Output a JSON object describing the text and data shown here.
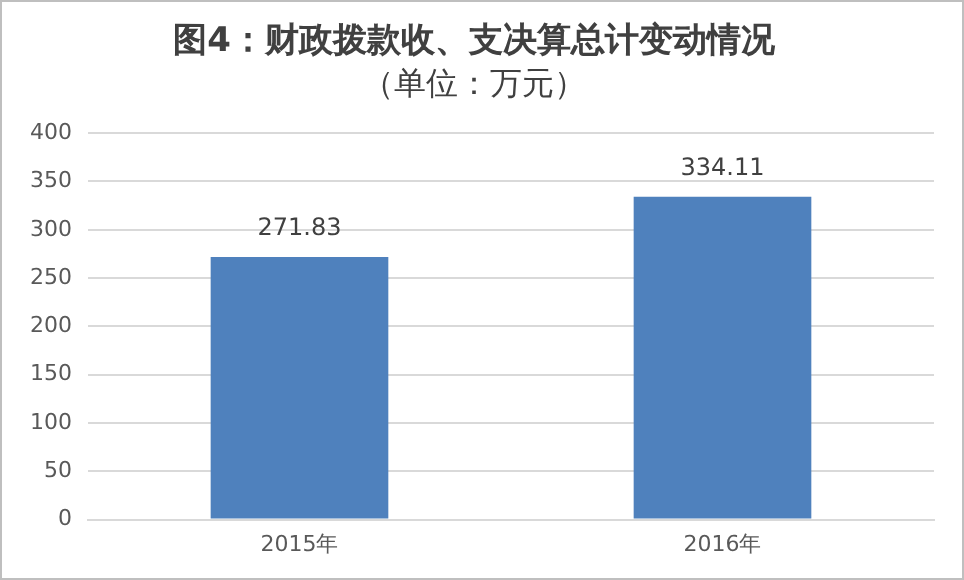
{
  "chart_data": {
    "type": "bar",
    "title": "图4：财政拨款收、支决算总计变动情况",
    "subtitle": "（单位：万元）",
    "categories": [
      "2015年",
      "2016年"
    ],
    "values": [
      271.83,
      334.11
    ],
    "color": "#4f81bd",
    "ylim": [
      0,
      400
    ],
    "yticks": [
      0,
      50,
      100,
      150,
      200,
      250,
      300,
      350,
      400
    ],
    "grid": "y",
    "data_labels": true
  }
}
